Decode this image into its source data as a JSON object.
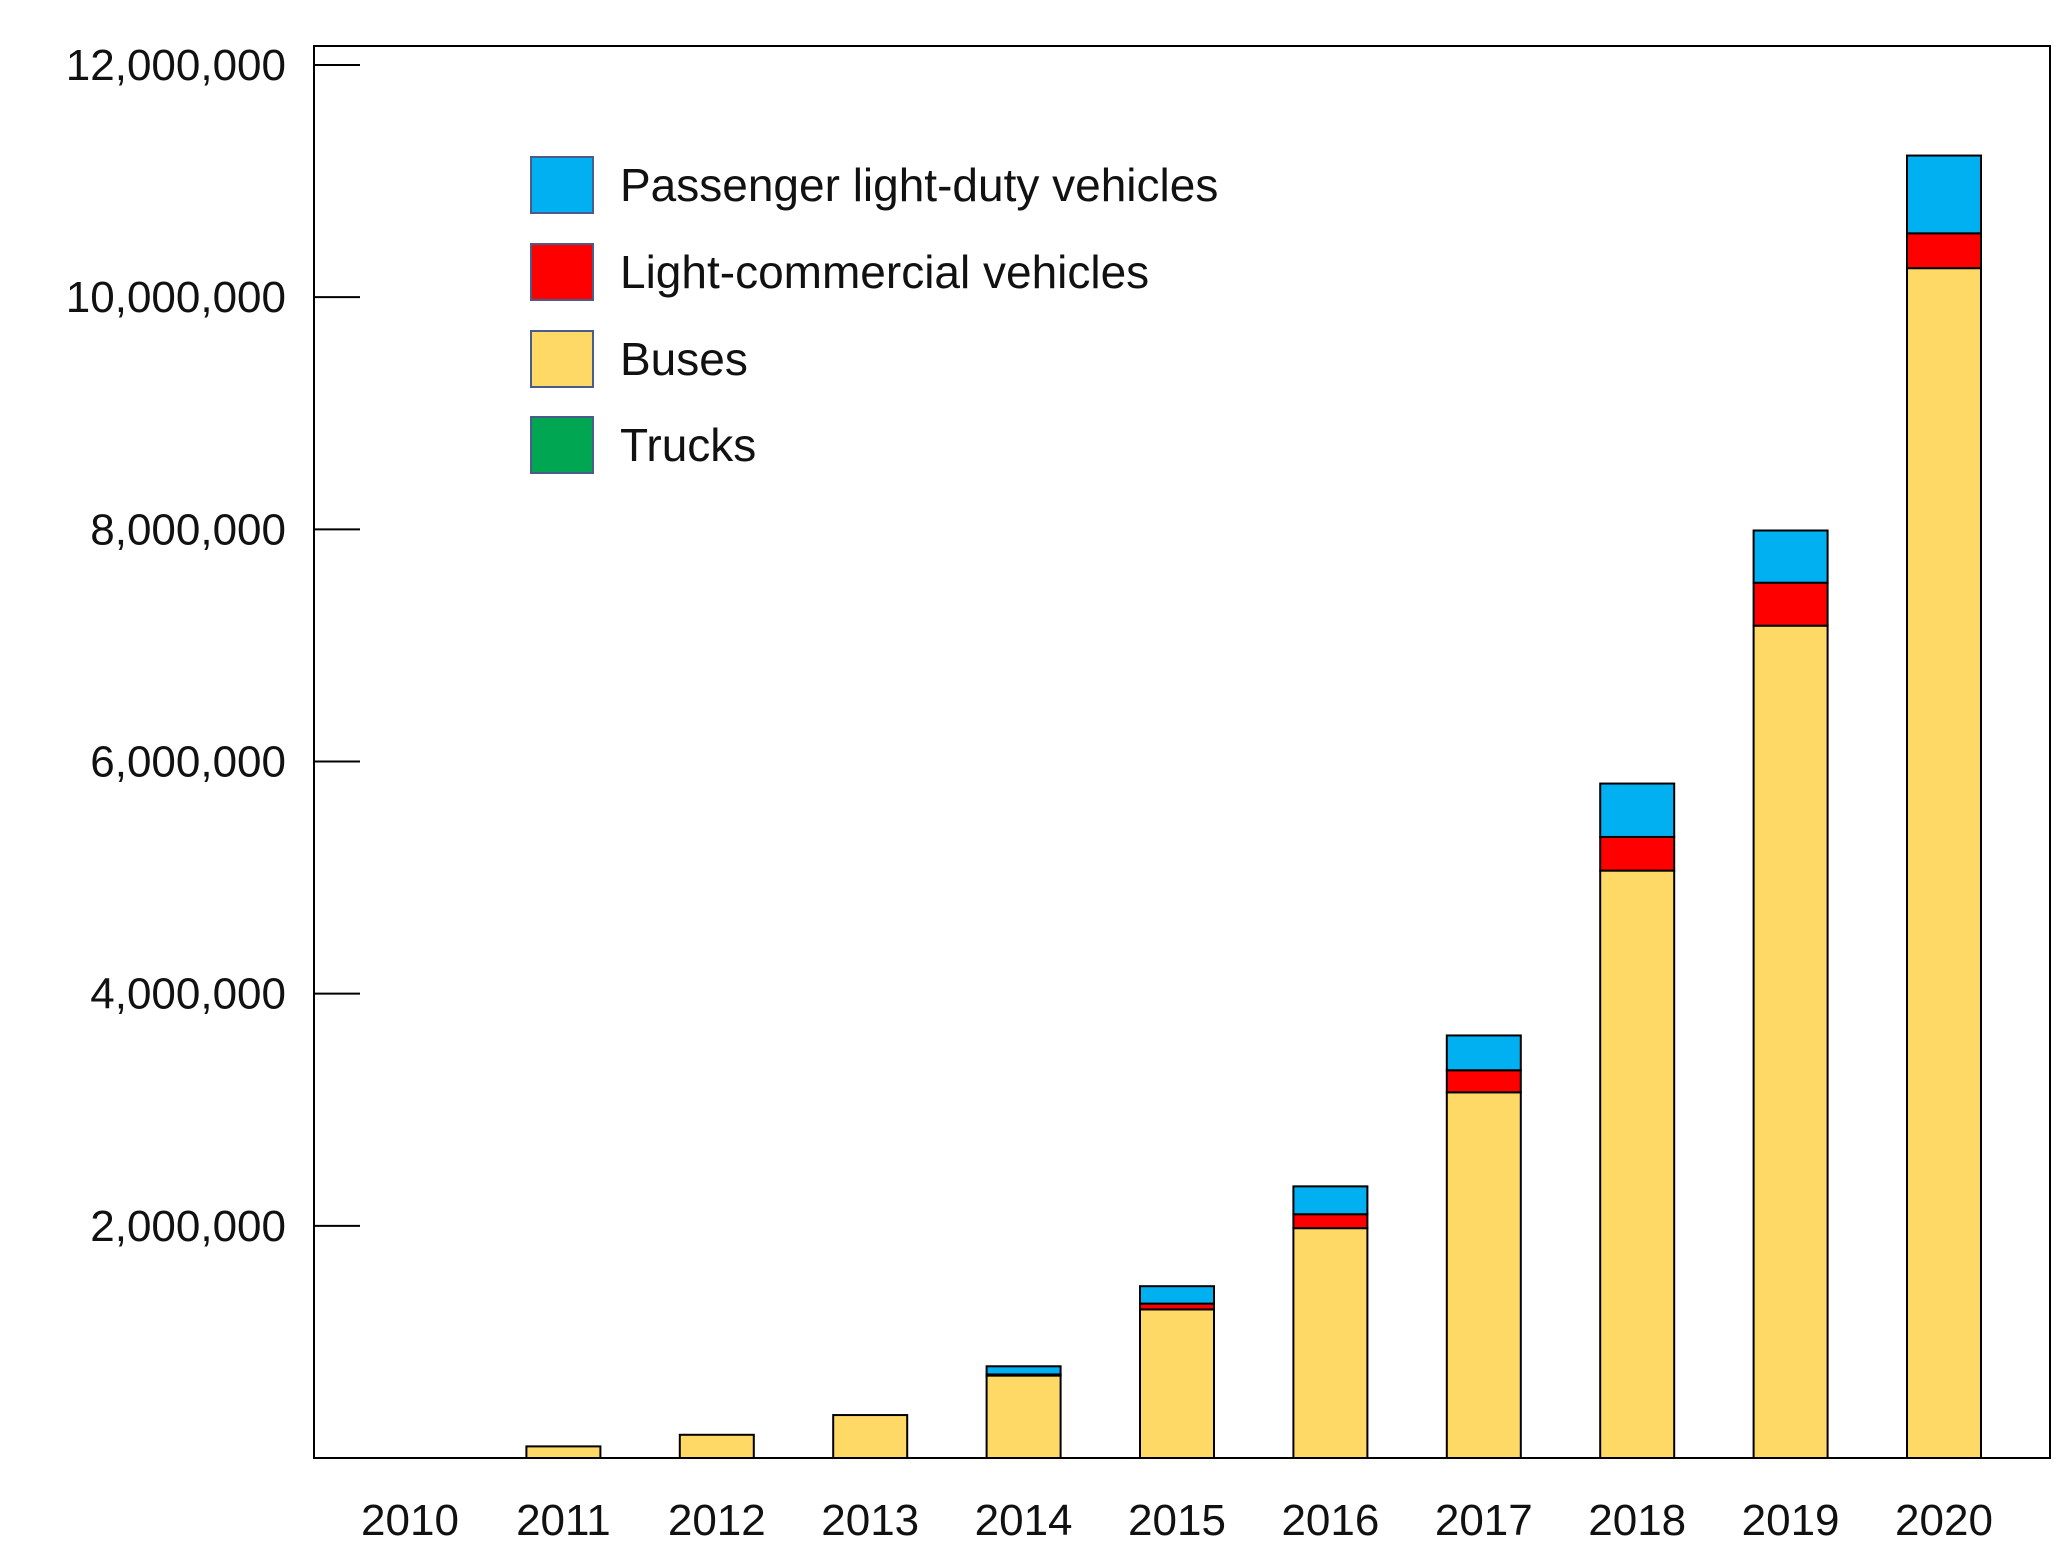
{
  "chart_data": {
    "type": "bar",
    "stacked": true,
    "title": "",
    "xlabel": "",
    "ylabel": "",
    "ylim": [
      0,
      12000000
    ],
    "yticks": [
      2000000,
      4000000,
      6000000,
      8000000,
      10000000,
      12000000
    ],
    "ytick_labels": [
      "2,000,000",
      "4,000,000",
      "6,000,000",
      "8,000,000",
      "10,000,000",
      "12,000,000"
    ],
    "categories": [
      "2010",
      "2011",
      "2012",
      "2013",
      "2014",
      "2015",
      "2016",
      "2017",
      "2018",
      "2019",
      "2020"
    ],
    "series": [
      {
        "name": "Trucks",
        "color": "#00a651",
        "values": [
          0,
          0,
          0,
          0,
          0,
          0,
          0,
          0,
          0,
          0,
          0
        ]
      },
      {
        "name": "Buses",
        "color": "#ffd966",
        "values": [
          0,
          100000,
          200000,
          370000,
          710000,
          1280000,
          1980000,
          3150000,
          5060000,
          7170000,
          10250000
        ]
      },
      {
        "name": "Light-commercial vehicles",
        "color": "#ff0000",
        "values": [
          0,
          0,
          0,
          0,
          10000,
          50000,
          120000,
          190000,
          290000,
          370000,
          300000
        ]
      },
      {
        "name": "Passenger light-duty vehicles",
        "color": "#00b0f0",
        "values": [
          0,
          0,
          0,
          0,
          70000,
          150000,
          240000,
          300000,
          460000,
          450000,
          670000
        ]
      }
    ],
    "legend": {
      "position": "top-left",
      "order": [
        "Passenger light-duty vehicles",
        "Light-commercial vehicles",
        "Buses",
        "Trucks"
      ]
    },
    "grid": false
  }
}
